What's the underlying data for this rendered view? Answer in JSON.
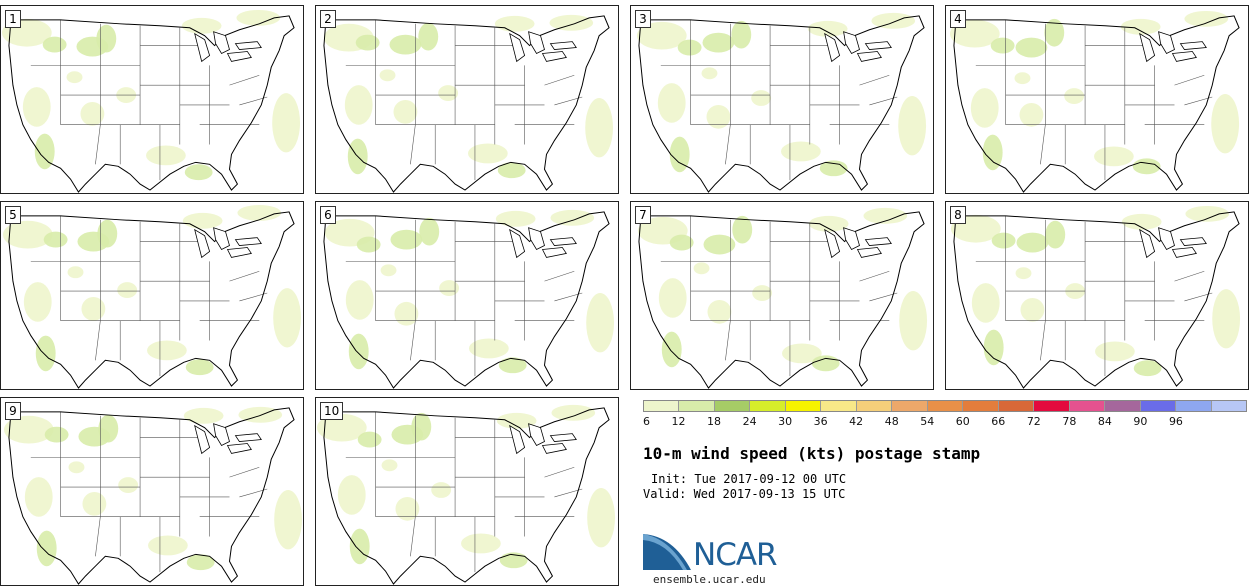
{
  "panels": [
    {
      "label": "1"
    },
    {
      "label": "2"
    },
    {
      "label": "3"
    },
    {
      "label": "4"
    },
    {
      "label": "5"
    },
    {
      "label": "6"
    },
    {
      "label": "7"
    },
    {
      "label": "8"
    },
    {
      "label": "9"
    },
    {
      "label": "10"
    }
  ],
  "colorbar": {
    "ticks": [
      "6",
      "12",
      "18",
      "24",
      "30",
      "36",
      "42",
      "48",
      "54",
      "60",
      "66",
      "72",
      "78",
      "84",
      "90",
      "96"
    ],
    "colors": [
      "#eef5cc",
      "#d8ecaa",
      "#a6cc66",
      "#d6ee2a",
      "#f6f300",
      "#f8e888",
      "#f5cf7a",
      "#eda86a",
      "#e89048",
      "#e37d3c",
      "#d86838",
      "#e30a3e",
      "#e5528f",
      "#a5679c",
      "#6a6ce8",
      "#8ea7f0",
      "#b7c7f5"
    ]
  },
  "title": "10-m wind speed (kts) postage stamp",
  "init": "Init: Tue 2017-09-12 00 UTC",
  "valid": "Valid: Wed 2017-09-13 15 UTC",
  "logo_text": "NCAR",
  "site": "ensemble.ucar.edu",
  "colors": {
    "wind_light": "#eef5cc",
    "wind_mid": "#d8ecaa",
    "wind_high": "#bede5a",
    "logo_blue": "#1f5f96"
  }
}
